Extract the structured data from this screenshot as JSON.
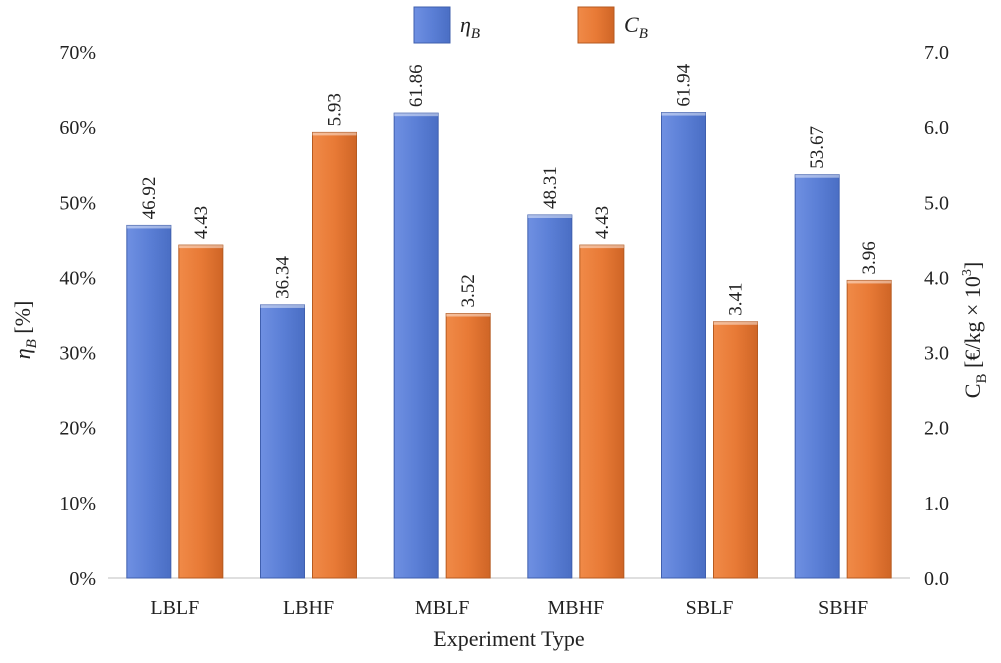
{
  "chart_data": {
    "type": "bar",
    "categories": [
      "LBLF",
      "LBHF",
      "MBLF",
      "MBHF",
      "SBLF",
      "SBHF"
    ],
    "series": [
      {
        "name": "η_B",
        "legend_main": "η",
        "legend_sub": "B",
        "axis": "left",
        "color": "#5b7fd6",
        "values": [
          46.92,
          36.34,
          61.86,
          48.31,
          61.94,
          53.67
        ],
        "labels": [
          "46.92",
          "36.34",
          "61.86",
          "48.31",
          "61.94",
          "53.67"
        ]
      },
      {
        "name": "C_B",
        "legend_main": "C",
        "legend_sub": "B",
        "axis": "right",
        "color": "#e87a36",
        "values": [
          4.43,
          5.93,
          3.52,
          4.43,
          3.41,
          3.96
        ],
        "labels": [
          "4.43",
          "5.93",
          "3.52",
          "4.43",
          "3.41",
          "3.96"
        ]
      }
    ],
    "xlabel": "Experiment Type",
    "ylabel_left": {
      "main": "η",
      "sub": "B",
      "unit": " [%]"
    },
    "ylabel_right": {
      "main": "C",
      "sub": "B",
      "unit": " [€/kg × 10",
      "sup": "3",
      "close": "]"
    },
    "ylim_left": [
      0,
      70
    ],
    "ylim_right": [
      0,
      7
    ],
    "left_ticks": [
      "0%",
      "10%",
      "20%",
      "30%",
      "40%",
      "50%",
      "60%",
      "70%"
    ],
    "right_ticks": [
      "0.0",
      "1.0",
      "2.0",
      "3.0",
      "4.0",
      "5.0",
      "6.0",
      "7.0"
    ],
    "grid": false,
    "legend_position": "top"
  }
}
